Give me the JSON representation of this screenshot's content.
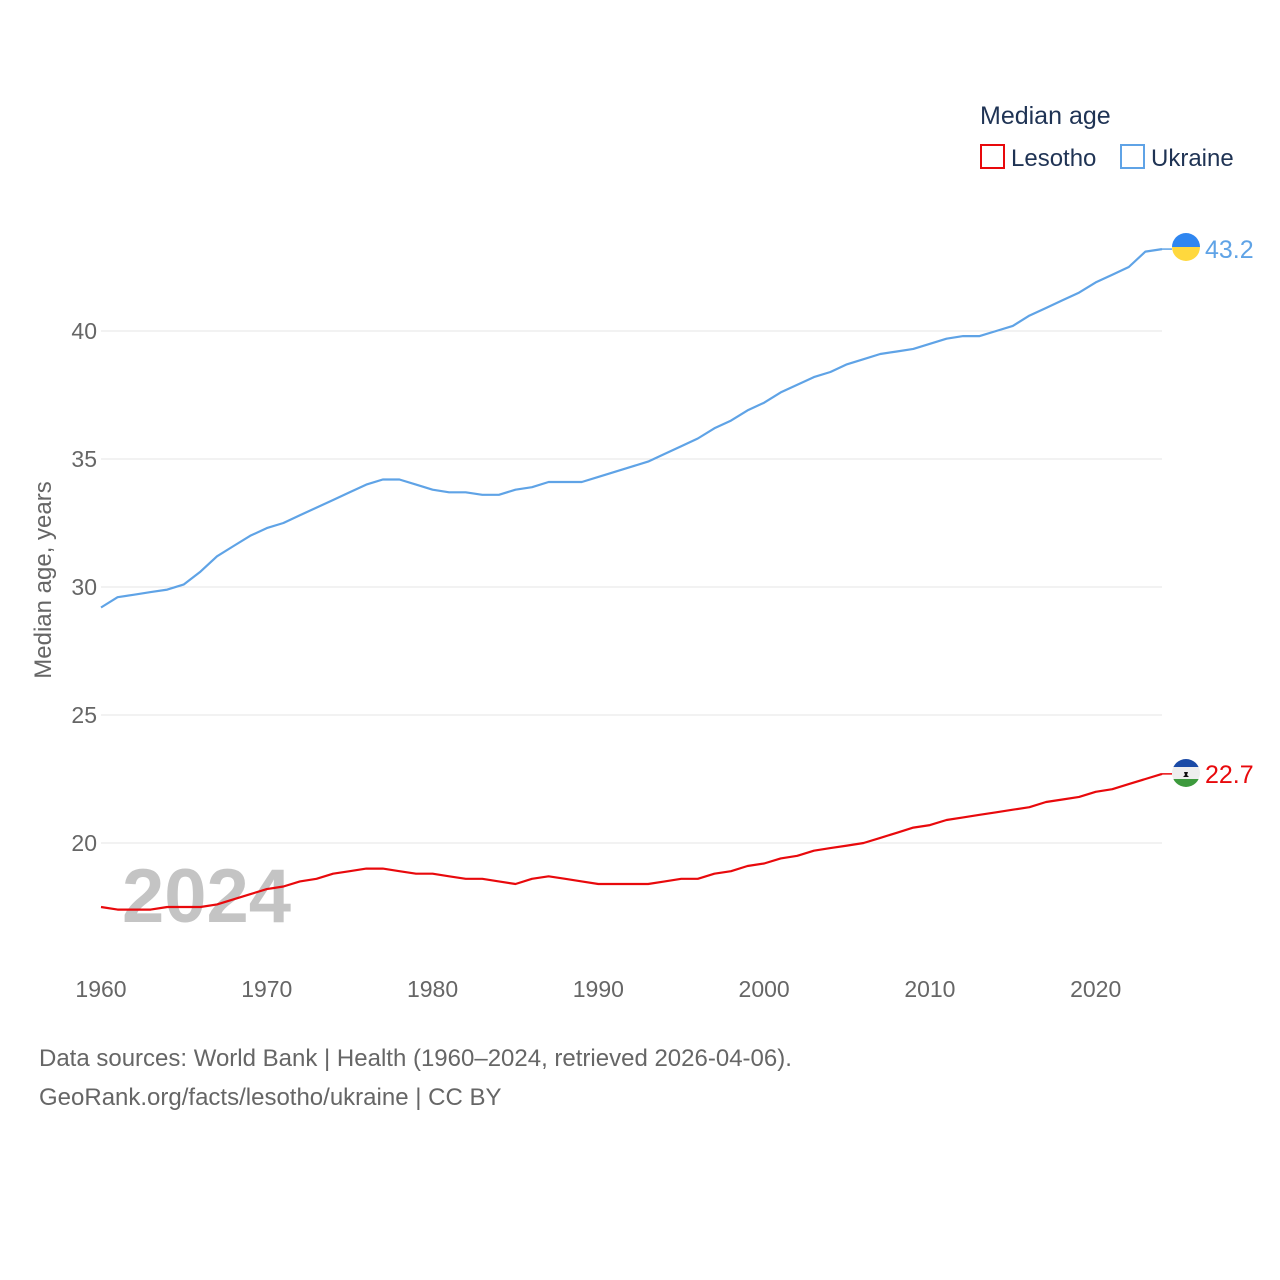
{
  "chart_data": {
    "type": "line",
    "title": "",
    "xlabel": "",
    "ylabel": "Median age, years",
    "xlim": [
      1960,
      2024
    ],
    "ylim": [
      16,
      44.5
    ],
    "y_ticks": [
      20,
      25,
      30,
      35,
      40
    ],
    "x_ticks": [
      1960,
      1970,
      1980,
      1990,
      2000,
      2010,
      2020
    ],
    "grid": true,
    "legend": {
      "title": "Median age",
      "position": "top-right"
    },
    "current_year_label": "2024",
    "x": [
      1960,
      1961,
      1962,
      1963,
      1964,
      1965,
      1966,
      1967,
      1968,
      1969,
      1970,
      1971,
      1972,
      1973,
      1974,
      1975,
      1976,
      1977,
      1978,
      1979,
      1980,
      1981,
      1982,
      1983,
      1984,
      1985,
      1986,
      1987,
      1988,
      1989,
      1990,
      1991,
      1992,
      1993,
      1994,
      1995,
      1996,
      1997,
      1998,
      1999,
      2000,
      2001,
      2002,
      2003,
      2004,
      2005,
      2006,
      2007,
      2008,
      2009,
      2010,
      2011,
      2012,
      2013,
      2014,
      2015,
      2016,
      2017,
      2018,
      2019,
      2020,
      2021,
      2022,
      2023,
      2024
    ],
    "series": [
      {
        "name": "Lesotho",
        "color": "#e8090c",
        "end_label": "22.7",
        "flag": "lesotho-flag",
        "values": [
          17.5,
          17.4,
          17.4,
          17.4,
          17.5,
          17.5,
          17.5,
          17.6,
          17.8,
          18.0,
          18.2,
          18.3,
          18.5,
          18.6,
          18.8,
          18.9,
          19.0,
          19.0,
          18.9,
          18.8,
          18.8,
          18.7,
          18.6,
          18.6,
          18.5,
          18.4,
          18.6,
          18.7,
          18.6,
          18.5,
          18.4,
          18.4,
          18.4,
          18.4,
          18.5,
          18.6,
          18.6,
          18.8,
          18.9,
          19.1,
          19.2,
          19.4,
          19.5,
          19.7,
          19.8,
          19.9,
          20.0,
          20.2,
          20.4,
          20.6,
          20.7,
          20.9,
          21.0,
          21.1,
          21.2,
          21.3,
          21.4,
          21.6,
          21.7,
          21.8,
          22.0,
          22.1,
          22.3,
          22.5,
          22.7
        ]
      },
      {
        "name": "Ukraine",
        "color": "#5fa3e6",
        "end_label": "43.2",
        "flag": "ukraine-flag",
        "values": [
          29.2,
          29.6,
          29.7,
          29.8,
          29.9,
          30.1,
          30.6,
          31.2,
          31.6,
          32.0,
          32.3,
          32.5,
          32.8,
          33.1,
          33.4,
          33.7,
          34.0,
          34.2,
          34.2,
          34.0,
          33.8,
          33.7,
          33.7,
          33.6,
          33.6,
          33.8,
          33.9,
          34.1,
          34.1,
          34.1,
          34.3,
          34.5,
          34.7,
          34.9,
          35.2,
          35.5,
          35.8,
          36.2,
          36.5,
          36.9,
          37.2,
          37.6,
          37.9,
          38.2,
          38.4,
          38.7,
          38.9,
          39.1,
          39.2,
          39.3,
          39.5,
          39.7,
          39.8,
          39.8,
          40.0,
          40.2,
          40.6,
          40.9,
          41.2,
          41.5,
          41.9,
          42.2,
          42.5,
          43.1,
          43.2
        ]
      }
    ]
  },
  "footer": {
    "sources": "Data sources: World Bank | Health (1960–2024, retrieved 2026-04-06).",
    "attribution": "GeoRank.org/facts/lesotho/ukraine | CC BY"
  }
}
